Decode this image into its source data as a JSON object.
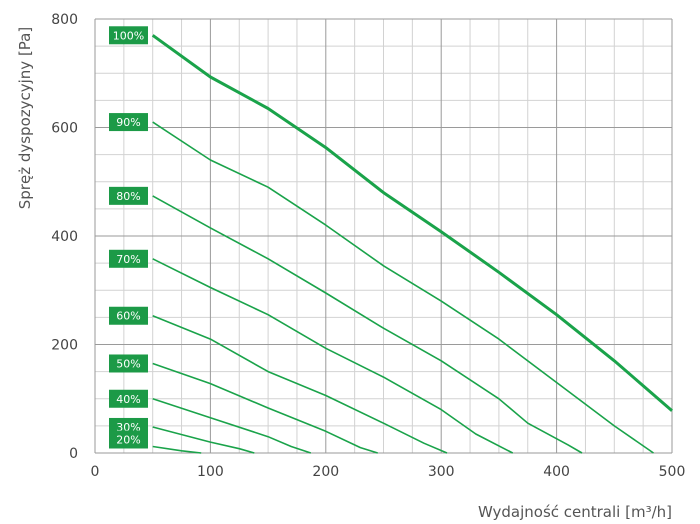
{
  "chart_data": {
    "type": "line",
    "xlabel": "Wydajność centrali [m³/h]",
    "ylabel": "Spręż dyspozycyjny [Pa]",
    "xlim": [
      0,
      500
    ],
    "ylim": [
      0,
      800
    ],
    "x_ticks": [
      "0",
      "100",
      "200",
      "300",
      "400",
      "500"
    ],
    "y_ticks": [
      "0",
      "200",
      "400",
      "600",
      "800"
    ],
    "grid": "major and minor",
    "line_color": "#1aa34a",
    "badge_color": "#1c9a47",
    "series": [
      {
        "name": "100%",
        "points": [
          [
            50,
            770
          ],
          [
            100,
            693
          ],
          [
            150,
            635
          ],
          [
            200,
            563
          ],
          [
            250,
            480
          ],
          [
            300,
            408
          ],
          [
            350,
            333
          ],
          [
            400,
            255
          ],
          [
            450,
            170
          ],
          [
            500,
            78
          ]
        ]
      },
      {
        "name": "90%",
        "points": [
          [
            50,
            610
          ],
          [
            100,
            540
          ],
          [
            150,
            490
          ],
          [
            200,
            420
          ],
          [
            250,
            345
          ],
          [
            300,
            280
          ],
          [
            350,
            210
          ],
          [
            400,
            130
          ],
          [
            450,
            50
          ],
          [
            484,
            0
          ]
        ]
      },
      {
        "name": "80%",
        "points": [
          [
            50,
            474
          ],
          [
            100,
            415
          ],
          [
            150,
            358
          ],
          [
            200,
            295
          ],
          [
            250,
            230
          ],
          [
            300,
            170
          ],
          [
            350,
            100
          ],
          [
            375,
            55
          ],
          [
            410,
            15
          ],
          [
            422,
            0
          ]
        ]
      },
      {
        "name": "70%",
        "points": [
          [
            50,
            358
          ],
          [
            100,
            305
          ],
          [
            150,
            255
          ],
          [
            200,
            193
          ],
          [
            250,
            140
          ],
          [
            300,
            80
          ],
          [
            330,
            35
          ],
          [
            362,
            0
          ]
        ]
      },
      {
        "name": "60%",
        "points": [
          [
            50,
            253
          ],
          [
            100,
            210
          ],
          [
            150,
            150
          ],
          [
            200,
            106
          ],
          [
            250,
            55
          ],
          [
            285,
            18
          ],
          [
            305,
            0
          ]
        ]
      },
      {
        "name": "50%",
        "points": [
          [
            50,
            165
          ],
          [
            100,
            128
          ],
          [
            150,
            83
          ],
          [
            200,
            40
          ],
          [
            230,
            10
          ],
          [
            245,
            0
          ]
        ]
      },
      {
        "name": "40%",
        "points": [
          [
            50,
            100
          ],
          [
            100,
            65
          ],
          [
            150,
            30
          ],
          [
            170,
            12
          ],
          [
            187,
            0
          ]
        ]
      },
      {
        "name": "30%",
        "points": [
          [
            50,
            48
          ],
          [
            100,
            20
          ],
          [
            125,
            8
          ],
          [
            138,
            0
          ]
        ]
      },
      {
        "name": "20%",
        "points": [
          [
            50,
            12
          ],
          [
            75,
            4
          ],
          [
            92,
            0
          ]
        ]
      }
    ]
  }
}
